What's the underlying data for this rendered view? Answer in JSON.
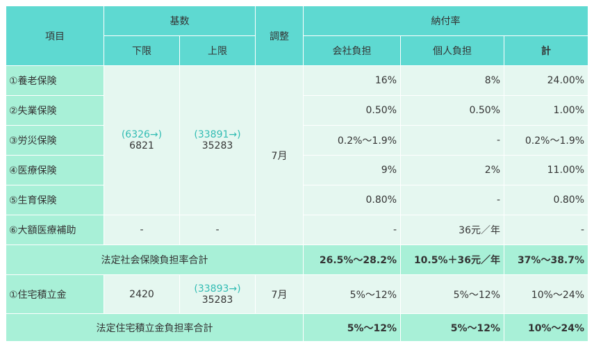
{
  "header": {
    "item": "項目",
    "base": "基数",
    "lower": "下限",
    "upper": "上限",
    "adjust": "調整",
    "rate": "納付率",
    "company": "会社負担",
    "personal": "個人負担",
    "total": "計"
  },
  "rows": [
    {
      "label": "①養老保険",
      "company": "16%",
      "personal": "8%",
      "total": "24.00%"
    },
    {
      "label": "②失業保険",
      "company": "0.50%",
      "personal": "0.50%",
      "total": "1.00%"
    },
    {
      "label": "③労災保険",
      "company": "0.2%～1.9%",
      "personal": "-",
      "total": "0.2%～1.9%"
    },
    {
      "label": "④医療保険",
      "company": "9%",
      "personal": "2%",
      "total": "11.00%"
    },
    {
      "label": "⑤生育保険",
      "company": "0.80%",
      "personal": "-",
      "total": "0.80%"
    },
    {
      "label": "⑥大額医療補助",
      "lower": "-",
      "upper": "-",
      "company": "-",
      "personal": "36元／年",
      "total": "-"
    }
  ],
  "social_base": {
    "lower_old": "(6326→)",
    "lower_new": "6821",
    "upper_old": "(33891→)",
    "upper_new": "35283",
    "adjust": "7月"
  },
  "social_total": {
    "label": "法定社会保険負担率合計",
    "company": "26.5%～28.2%",
    "personal": "10.5%＋36元／年",
    "total": "37%～38.7%"
  },
  "housing": {
    "label": "①住宅積立金",
    "lower": "2420",
    "upper_old": "(33893→)",
    "upper_new": "35283",
    "adjust": "7月",
    "company": "5%～12%",
    "personal": "5%～12%",
    "total": "10%～24%"
  },
  "housing_total": {
    "label": "法定住宅積立金負担率合計",
    "company": "5%～12%",
    "personal": "5%～12%",
    "total": "10%～24%"
  }
}
